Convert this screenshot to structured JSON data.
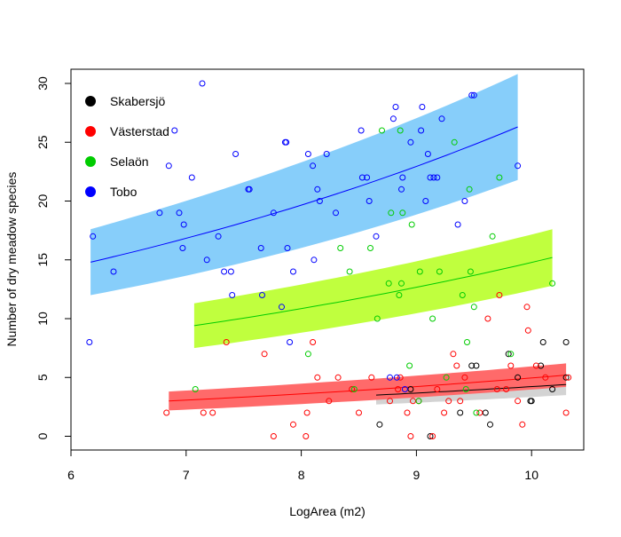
{
  "chart_data": {
    "type": "scatter",
    "title": "",
    "xlabel": "LogArea (m2)",
    "ylabel": "Number of dry meadow species",
    "xlim": [
      6,
      10.4
    ],
    "ylim": [
      -1,
      31
    ],
    "xticks": [
      6,
      7,
      8,
      9,
      10
    ],
    "yticks": [
      0,
      5,
      10,
      15,
      20,
      25,
      30
    ],
    "grid": false,
    "legend_position": "top-left",
    "series": [
      {
        "name": "Skabersjö",
        "color": "#000000",
        "band_color": "#d3d3d3",
        "points": [
          [
            8.68,
            1
          ],
          [
            8.95,
            4
          ],
          [
            9.12,
            0
          ],
          [
            9.38,
            2
          ],
          [
            9.48,
            6
          ],
          [
            9.52,
            6
          ],
          [
            9.6,
            2
          ],
          [
            9.64,
            1
          ],
          [
            9.8,
            7
          ],
          [
            9.88,
            5
          ],
          [
            9.99,
            3
          ],
          [
            10.0,
            3
          ],
          [
            10.08,
            6
          ],
          [
            10.1,
            8
          ],
          [
            10.18,
            4
          ],
          [
            10.3,
            8
          ],
          [
            10.3,
            5
          ]
        ],
        "fit": {
          "x": [
            8.65,
            10.3
          ],
          "y": [
            3.5,
            4.4
          ],
          "band_half_width": [
            0.8,
            0.9
          ]
        }
      },
      {
        "name": "Västerstad",
        "color": "#ff0000",
        "band_color": "#ff6a6a",
        "points": [
          [
            6.83,
            2
          ],
          [
            7.15,
            2
          ],
          [
            7.23,
            2
          ],
          [
            7.35,
            8
          ],
          [
            7.68,
            7
          ],
          [
            7.76,
            0
          ],
          [
            7.93,
            1
          ],
          [
            8.04,
            0
          ],
          [
            8.05,
            2
          ],
          [
            8.1,
            8
          ],
          [
            8.14,
            5
          ],
          [
            8.24,
            3
          ],
          [
            8.32,
            5
          ],
          [
            8.44,
            4
          ],
          [
            8.5,
            2
          ],
          [
            8.61,
            5
          ],
          [
            8.77,
            3
          ],
          [
            8.84,
            4
          ],
          [
            8.86,
            5
          ],
          [
            8.92,
            2
          ],
          [
            8.95,
            0
          ],
          [
            8.97,
            3
          ],
          [
            9.02,
            3
          ],
          [
            9.14,
            0
          ],
          [
            9.18,
            4
          ],
          [
            9.24,
            2
          ],
          [
            9.28,
            3
          ],
          [
            9.32,
            7
          ],
          [
            9.35,
            6
          ],
          [
            9.38,
            3
          ],
          [
            9.42,
            5
          ],
          [
            9.55,
            2
          ],
          [
            9.62,
            10
          ],
          [
            9.7,
            4
          ],
          [
            9.72,
            12
          ],
          [
            9.78,
            4
          ],
          [
            9.82,
            6
          ],
          [
            9.88,
            3
          ],
          [
            9.92,
            1
          ],
          [
            9.96,
            11
          ],
          [
            9.97,
            9
          ],
          [
            10.04,
            6
          ],
          [
            10.12,
            5
          ],
          [
            10.3,
            2
          ],
          [
            10.32,
            5
          ]
        ],
        "fit": {
          "x": [
            6.85,
            10.3
          ],
          "y": [
            3.0,
            5.2
          ],
          "band_half_width": [
            0.8,
            1.0
          ]
        }
      },
      {
        "name": "Selaön",
        "color": "#00cc00",
        "band_color": "#c0ff3e",
        "points": [
          [
            7.08,
            4
          ],
          [
            8.06,
            7
          ],
          [
            8.34,
            16
          ],
          [
            8.42,
            14
          ],
          [
            8.46,
            4
          ],
          [
            8.6,
            16
          ],
          [
            8.66,
            10
          ],
          [
            8.7,
            26
          ],
          [
            8.76,
            13
          ],
          [
            8.78,
            19
          ],
          [
            8.85,
            12
          ],
          [
            8.86,
            26
          ],
          [
            8.87,
            13
          ],
          [
            8.88,
            19
          ],
          [
            8.94,
            6
          ],
          [
            8.96,
            18
          ],
          [
            9.02,
            3
          ],
          [
            9.03,
            14
          ],
          [
            9.14,
            10
          ],
          [
            9.2,
            14
          ],
          [
            9.26,
            5
          ],
          [
            9.33,
            25
          ],
          [
            9.4,
            12
          ],
          [
            9.43,
            4
          ],
          [
            9.44,
            8
          ],
          [
            9.46,
            21
          ],
          [
            9.47,
            14
          ],
          [
            9.5,
            11
          ],
          [
            9.52,
            2
          ],
          [
            9.66,
            17
          ],
          [
            9.72,
            22
          ],
          [
            9.82,
            7
          ],
          [
            10.18,
            13
          ]
        ],
        "fit": {
          "x": [
            7.07,
            10.18
          ],
          "y": [
            9.4,
            15.2
          ],
          "band_half_width": [
            1.9,
            2.4
          ]
        }
      },
      {
        "name": "Tobo",
        "color": "#0000ff",
        "band_color": "#87cefa",
        "points": [
          [
            6.16,
            8
          ],
          [
            6.19,
            17
          ],
          [
            6.37,
            14
          ],
          [
            6.77,
            19
          ],
          [
            6.85,
            23
          ],
          [
            6.9,
            26
          ],
          [
            6.94,
            19
          ],
          [
            6.97,
            16
          ],
          [
            6.98,
            18
          ],
          [
            7.05,
            22
          ],
          [
            7.14,
            30
          ],
          [
            7.18,
            15
          ],
          [
            7.28,
            17
          ],
          [
            7.33,
            14
          ],
          [
            7.39,
            14
          ],
          [
            7.4,
            12
          ],
          [
            7.43,
            24
          ],
          [
            7.54,
            21
          ],
          [
            7.55,
            21
          ],
          [
            7.65,
            16
          ],
          [
            7.66,
            12
          ],
          [
            7.76,
            19
          ],
          [
            7.83,
            11
          ],
          [
            7.86,
            25
          ],
          [
            7.87,
            25
          ],
          [
            7.88,
            16
          ],
          [
            7.9,
            8
          ],
          [
            7.93,
            14
          ],
          [
            8.06,
            24
          ],
          [
            8.1,
            23
          ],
          [
            8.11,
            15
          ],
          [
            8.14,
            21
          ],
          [
            8.16,
            20
          ],
          [
            8.22,
            24
          ],
          [
            8.3,
            19
          ],
          [
            8.52,
            26
          ],
          [
            8.53,
            22
          ],
          [
            8.57,
            22
          ],
          [
            8.59,
            20
          ],
          [
            8.65,
            17
          ],
          [
            8.77,
            5
          ],
          [
            8.8,
            27
          ],
          [
            8.82,
            28
          ],
          [
            8.83,
            5
          ],
          [
            8.87,
            21
          ],
          [
            8.88,
            22
          ],
          [
            8.9,
            4
          ],
          [
            8.95,
            25
          ],
          [
            9.04,
            26
          ],
          [
            9.05,
            28
          ],
          [
            9.08,
            20
          ],
          [
            9.1,
            24
          ],
          [
            9.12,
            22
          ],
          [
            9.15,
            22
          ],
          [
            9.18,
            22
          ],
          [
            9.22,
            27
          ],
          [
            9.36,
            18
          ],
          [
            9.42,
            20
          ],
          [
            9.48,
            29
          ],
          [
            9.5,
            29
          ],
          [
            9.88,
            23
          ]
        ],
        "fit": {
          "x": [
            6.17,
            9.88
          ],
          "y": [
            14.8,
            26.3
          ],
          "band_half_width": [
            2.8,
            4.5
          ]
        }
      }
    ]
  }
}
